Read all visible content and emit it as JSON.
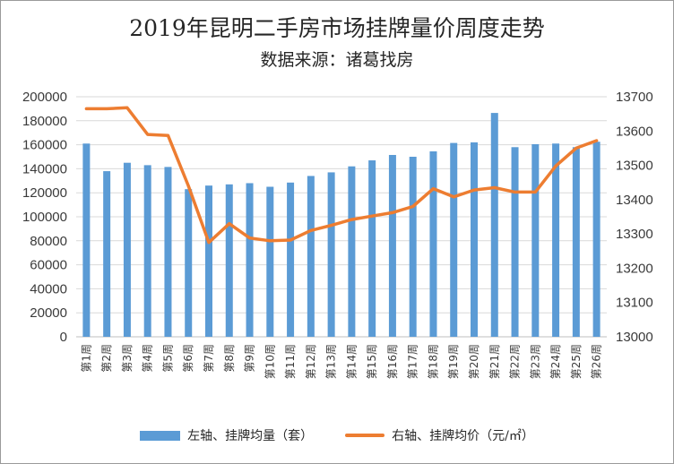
{
  "chart_data": {
    "type": "bar+line",
    "title": "2019年昆明二手房市场挂牌量价周度走势",
    "subtitle": "数据来源：诸葛找房",
    "categories": [
      "第1周",
      "第2周",
      "第3周",
      "第4周",
      "第5周",
      "第6周",
      "第7周",
      "第8周",
      "第9周",
      "第10周",
      "第11周",
      "第12周",
      "第13周",
      "第14周",
      "第15周",
      "第16周",
      "第17周",
      "第18周",
      "第19周",
      "第20周",
      "第21周",
      "第22周",
      "第23周",
      "第24周",
      "第25周",
      "第26周"
    ],
    "series": [
      {
        "name": "左轴、挂牌均量（套）",
        "type": "bar",
        "axis": "left",
        "color": "#5b9bd5",
        "values": [
          161000,
          138000,
          145000,
          143000,
          141500,
          123000,
          126000,
          127000,
          128000,
          125000,
          128500,
          134000,
          137000,
          142000,
          147000,
          151500,
          150000,
          154500,
          161500,
          162000,
          186500,
          158000,
          160500,
          161000,
          158000,
          162500
        ]
      },
      {
        "name": "右轴、挂牌均价（元/㎡）",
        "type": "line",
        "axis": "right",
        "color": "#ed7d31",
        "values": [
          13665,
          13665,
          13668,
          13590,
          13587,
          13440,
          13275,
          13330,
          13288,
          13280,
          13282,
          13310,
          13325,
          13342,
          13352,
          13362,
          13380,
          13432,
          13408,
          13428,
          13435,
          13422,
          13422,
          13498,
          13550,
          13572
        ]
      }
    ],
    "y_left": {
      "min": 0,
      "max": 200000,
      "step": 20000,
      "ticks": [
        "0",
        "20000",
        "40000",
        "60000",
        "80000",
        "100000",
        "120000",
        "140000",
        "160000",
        "180000",
        "200000"
      ]
    },
    "y_right": {
      "min": 13000,
      "max": 13700,
      "step": 100,
      "ticks": [
        "13000",
        "13100",
        "13200",
        "13300",
        "13400",
        "13500",
        "13600",
        "13700"
      ]
    },
    "gridlines": true,
    "legend_position": "bottom"
  }
}
